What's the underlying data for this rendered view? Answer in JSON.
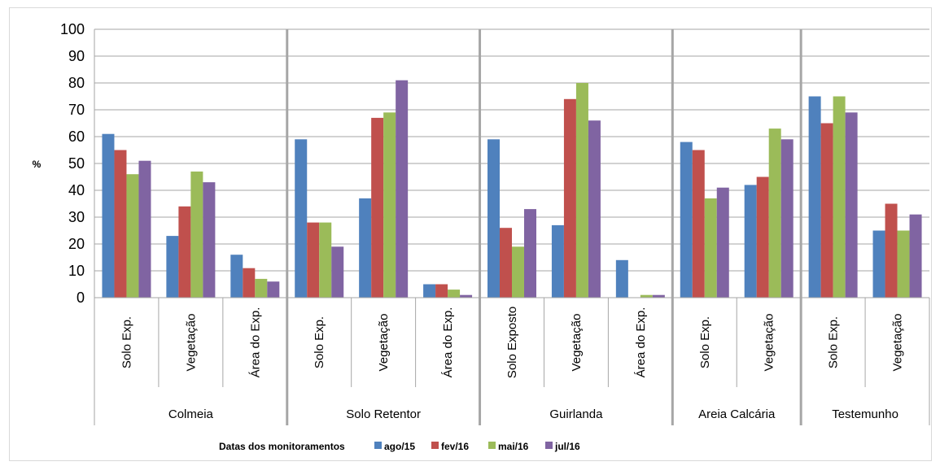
{
  "chart_data": {
    "type": "bar",
    "ylabel": "%",
    "ylim": [
      0,
      100
    ],
    "yticks": [
      0,
      10,
      20,
      30,
      40,
      50,
      60,
      70,
      80,
      90,
      100
    ],
    "grid": true,
    "legend_title": "Datas dos monitoramentos",
    "legend_position": "bottom",
    "groups": [
      {
        "name": "Colmeia",
        "categories": [
          "Solo Exp.",
          "Vegetação",
          "Área do Exp."
        ]
      },
      {
        "name": "Solo Retentor",
        "categories": [
          "Solo Exp.",
          "Vegetação",
          "Área do Exp."
        ]
      },
      {
        "name": "Guirlanda",
        "categories": [
          "Solo Exposto",
          "Vegetação",
          "Área do Exp."
        ]
      },
      {
        "name": "Areia Calcária",
        "categories": [
          "Solo Exp.",
          "Vegetação"
        ]
      },
      {
        "name": "Testemunho",
        "categories": [
          "Solo Exp.",
          "Vegetação"
        ]
      }
    ],
    "series": [
      {
        "name": "ago/15",
        "color": "#4f81bd",
        "values": [
          61,
          23,
          16,
          59,
          37,
          5,
          59,
          27,
          14,
          58,
          42,
          75,
          25
        ]
      },
      {
        "name": "fev/16",
        "color": "#c0504d",
        "values": [
          55,
          34,
          11,
          28,
          67,
          5,
          26,
          74,
          0,
          55,
          45,
          65,
          35
        ]
      },
      {
        "name": "mai/16",
        "color": "#9bbb59",
        "values": [
          46,
          47,
          7,
          28,
          69,
          3,
          19,
          80,
          1,
          37,
          63,
          75,
          25
        ]
      },
      {
        "name": "jul/16",
        "color": "#8064a2",
        "values": [
          51,
          43,
          6,
          19,
          81,
          1,
          33,
          66,
          1,
          41,
          59,
          69,
          31
        ]
      }
    ]
  }
}
